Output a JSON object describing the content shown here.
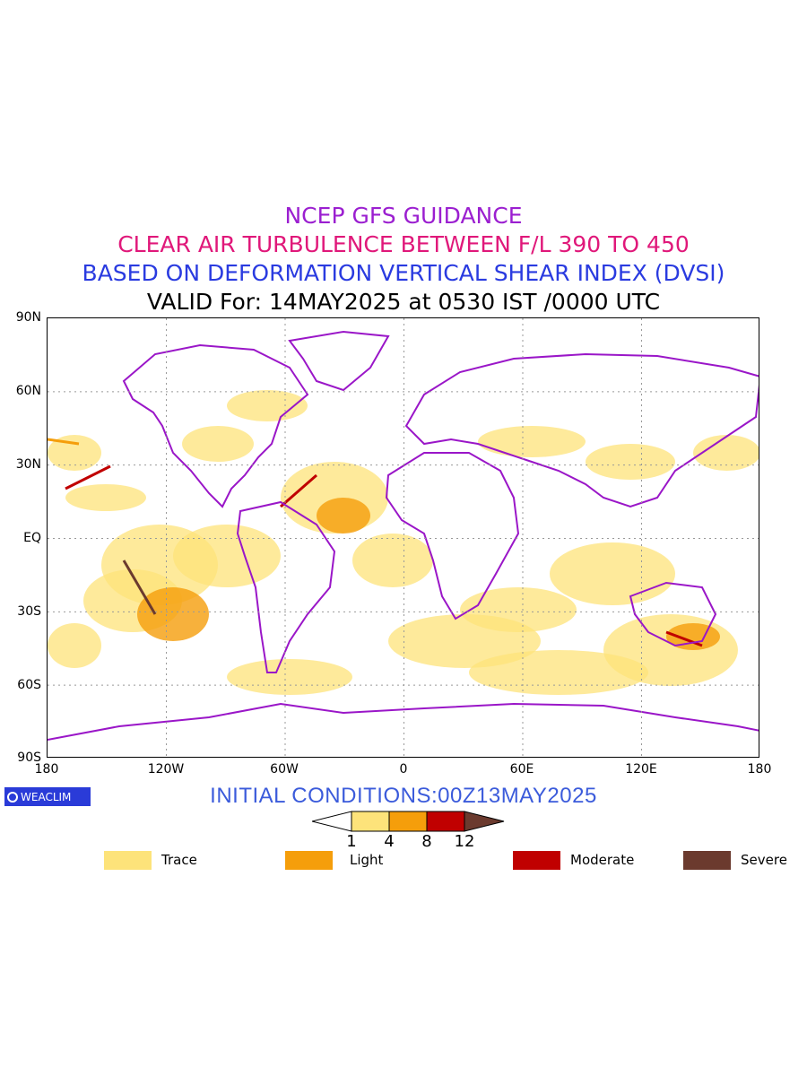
{
  "titles": {
    "line1": "NCEP GFS GUIDANCE",
    "line2": "CLEAR AIR TURBULENCE BETWEEN F/L 390 TO 450",
    "line3": "BASED ON DEFORMATION VERTICAL SHEAR INDEX (DVSI)",
    "line4": "VALID For: 14MAY2025 at 0530 IST /0000 UTC"
  },
  "colors": {
    "line1": "#9b1fd0",
    "line2": "#e0187a",
    "line3": "#2a3be0",
    "line4": "#000000",
    "coast": "#9a16c8",
    "trace": "#fde37a",
    "light": "#f59e0b",
    "moderate": "#c00000",
    "severe": "#6b3a2e",
    "init": "#3b5bdb"
  },
  "axes": {
    "lat_ticks": [
      "90N",
      "60N",
      "30N",
      "EQ",
      "30S",
      "60S",
      "90S"
    ],
    "lon_ticks": [
      "180",
      "120W",
      "60W",
      "0",
      "60E",
      "120E",
      "180"
    ]
  },
  "logo": {
    "text": "WEACLIM",
    "icon": "weaclim-logo-icon"
  },
  "initial_conditions": "INITIAL CONDITIONS:00Z13MAY2025",
  "colorbar": {
    "labels": [
      "1",
      "4",
      "8",
      "12"
    ]
  },
  "legend": [
    {
      "label": "Trace",
      "color": "#fde37a"
    },
    {
      "label": "Light",
      "color": "#f59e0b"
    },
    {
      "label": "Moderate",
      "color": "#c00000"
    },
    {
      "label": "Severe",
      "color": "#6b3a2e"
    }
  ]
}
